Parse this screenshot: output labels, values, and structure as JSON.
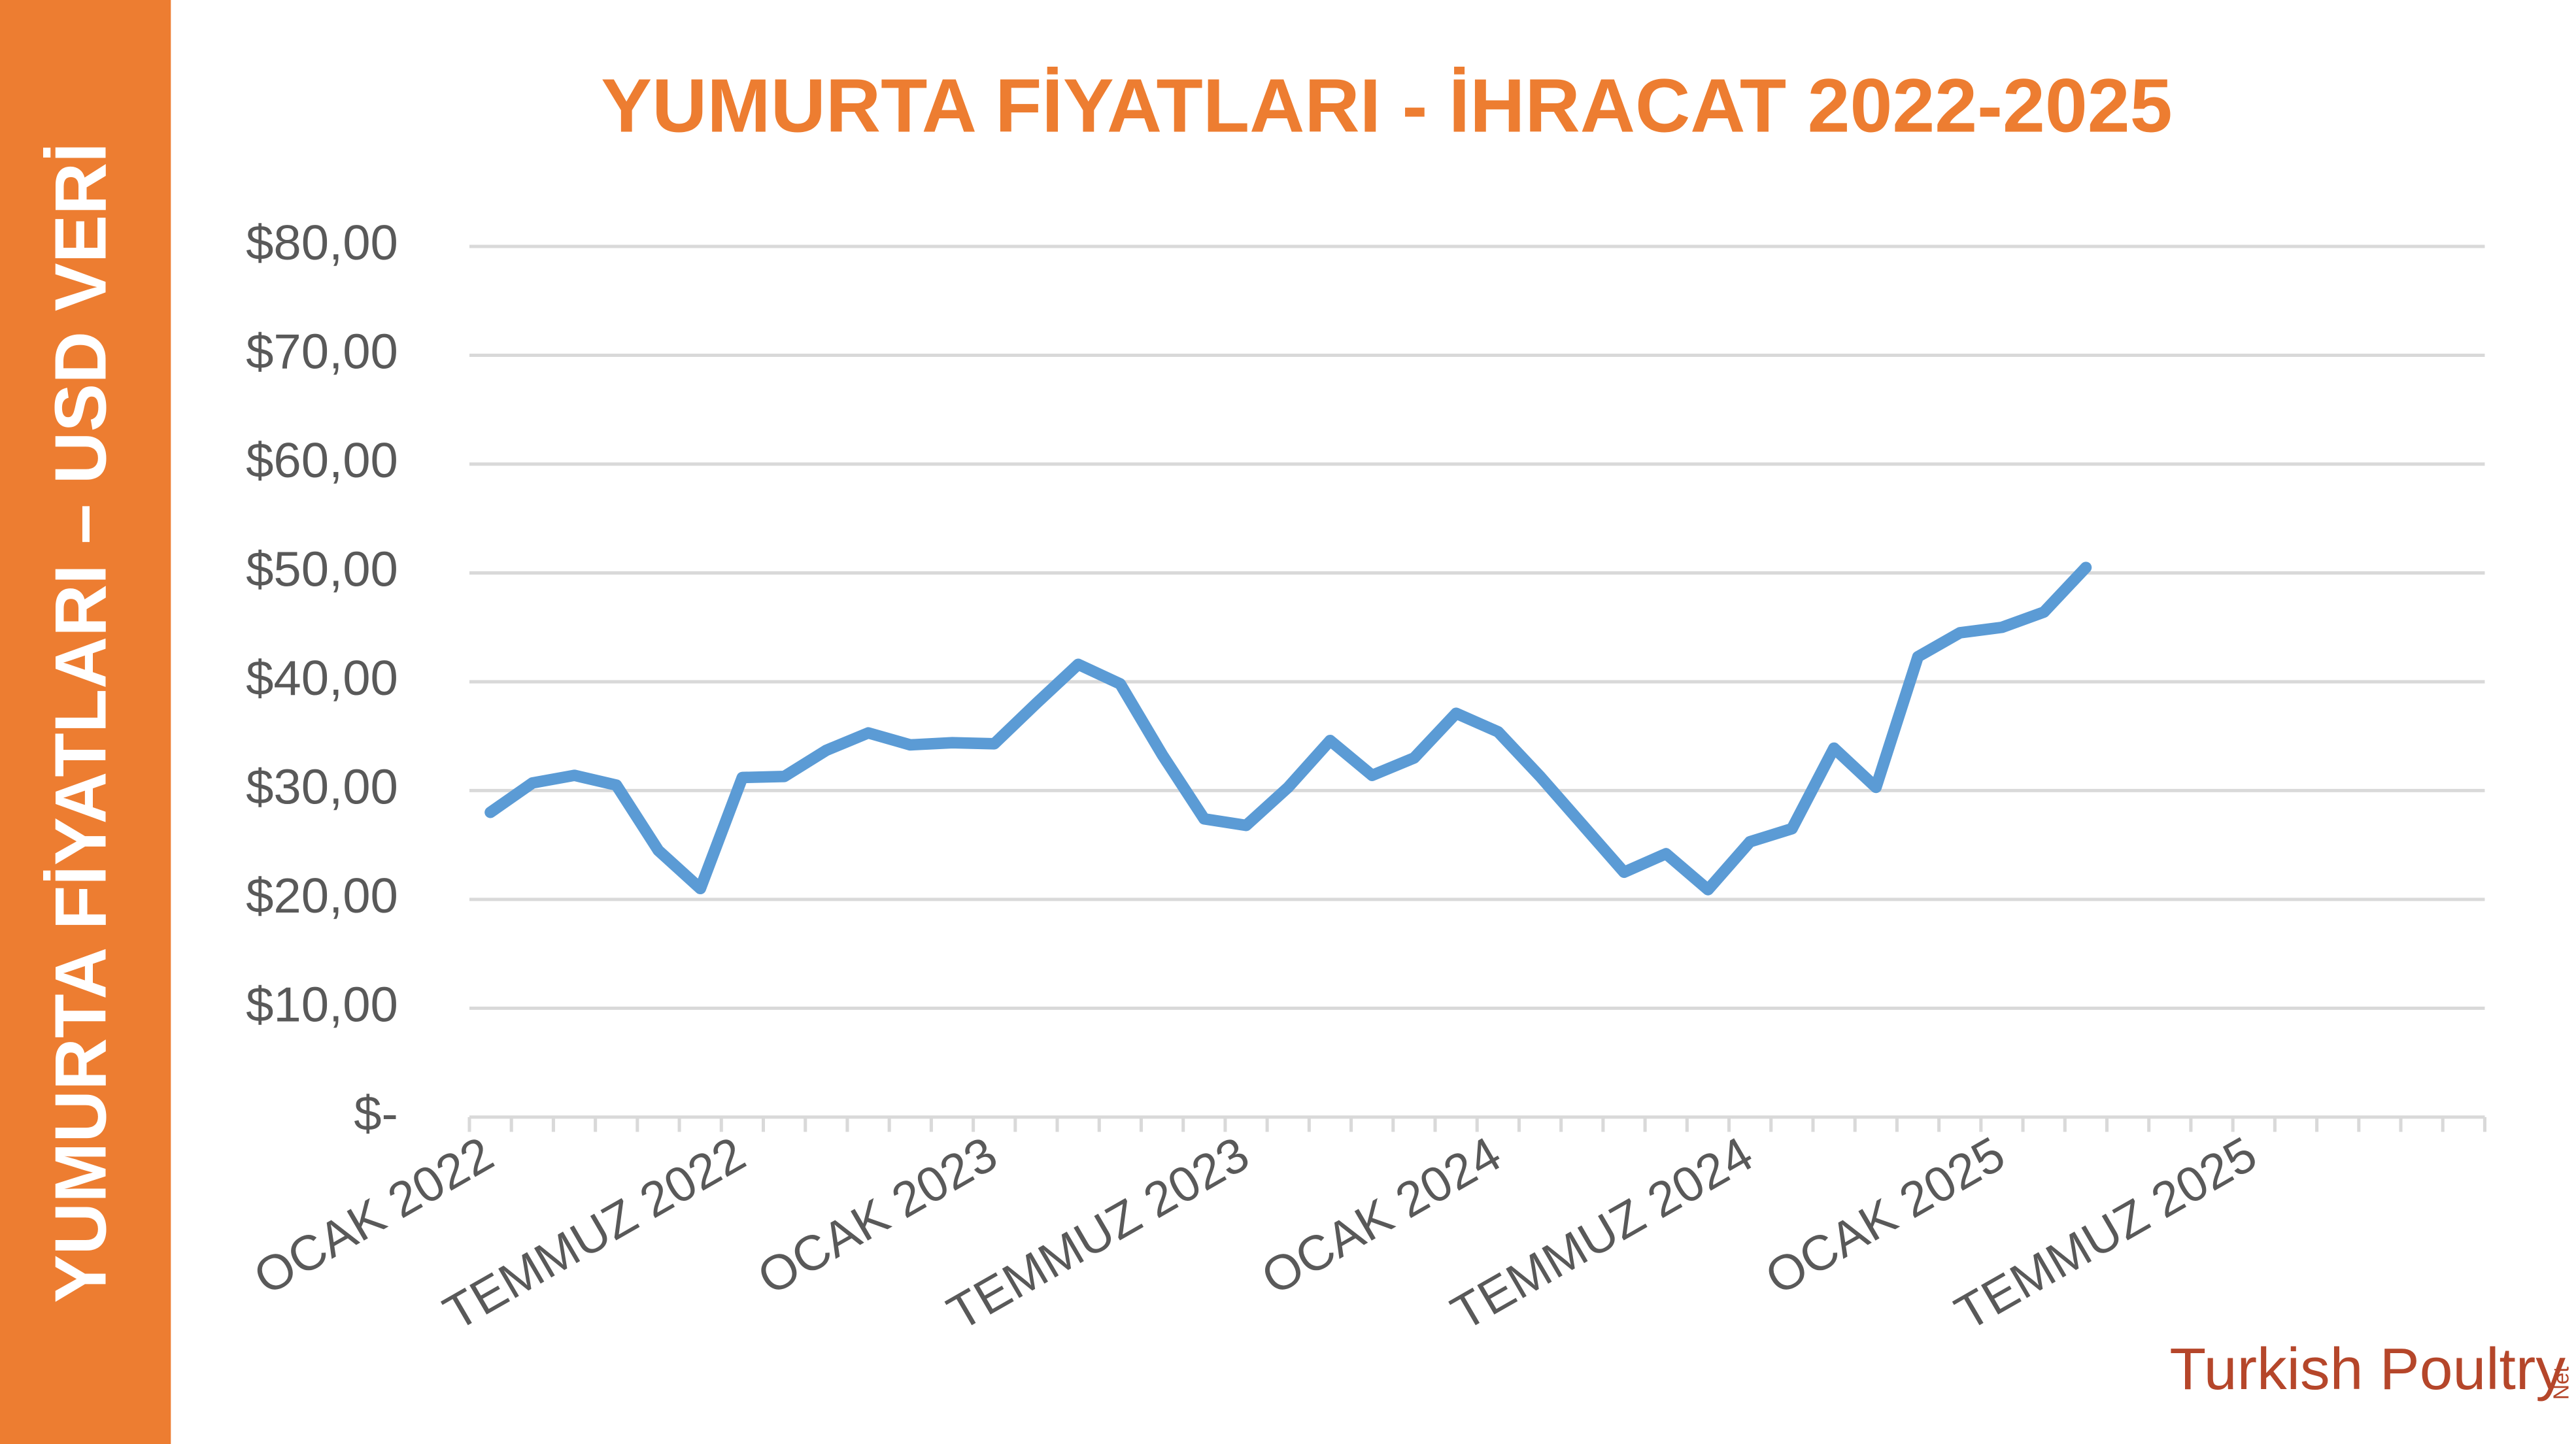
{
  "chart_data": {
    "type": "line",
    "title": "YUMURTA FİYATLARI - İHRACAT 2022-2025",
    "y_axis_label": "YUMURTA FİYATLARI – USD VERİ",
    "categories": [
      "OCAK 2022",
      null,
      null,
      null,
      null,
      null,
      "TEMMUZ 2022",
      null,
      null,
      null,
      null,
      null,
      "OCAK 2023",
      null,
      null,
      null,
      null,
      null,
      "TEMMUZ 2023",
      null,
      null,
      null,
      null,
      null,
      "OCAK 2024",
      null,
      null,
      null,
      null,
      null,
      "TEMMUZ 2024",
      null,
      null,
      null,
      null,
      null,
      "OCAK 2025",
      null,
      null,
      null,
      null,
      null,
      "TEMMUZ 2025",
      null,
      null,
      null,
      null,
      null
    ],
    "series": [
      {
        "color": "#5B9BD5",
        "values": [
          28,
          30.7,
          31.4,
          30.5,
          24.5,
          21,
          31.2,
          31.3,
          33.7,
          35.3,
          34.2,
          34.4,
          34.3,
          38,
          41.6,
          39.8,
          33.3,
          27.4,
          26.8,
          30.3,
          34.6,
          31.4,
          33,
          37.1,
          35.4,
          31.3,
          26.9,
          22.5,
          24.2,
          20.9,
          25.3,
          26.5,
          33.9,
          30.3,
          42.3,
          44.5,
          45,
          46.4,
          50.5,
          null,
          null,
          null,
          null,
          null,
          null,
          null,
          null,
          null
        ]
      }
    ],
    "ylim": [
      0,
      80
    ],
    "yticks": [
      {
        "value": 0,
        "label": "$-"
      },
      {
        "value": 10,
        "label": "$10,00"
      },
      {
        "value": 20,
        "label": "$20,00"
      },
      {
        "value": 30,
        "label": "$30,00"
      },
      {
        "value": 40,
        "label": "$40,00"
      },
      {
        "value": 50,
        "label": "$50,00"
      },
      {
        "value": 60,
        "label": "$60,00"
      },
      {
        "value": 70,
        "label": "$70,00"
      },
      {
        "value": 80,
        "label": "$80,00"
      }
    ],
    "grid": true,
    "accent_color": "#ED7D31"
  },
  "logo": {
    "name": "Turkish Poultry",
    "suffix": "Net"
  }
}
